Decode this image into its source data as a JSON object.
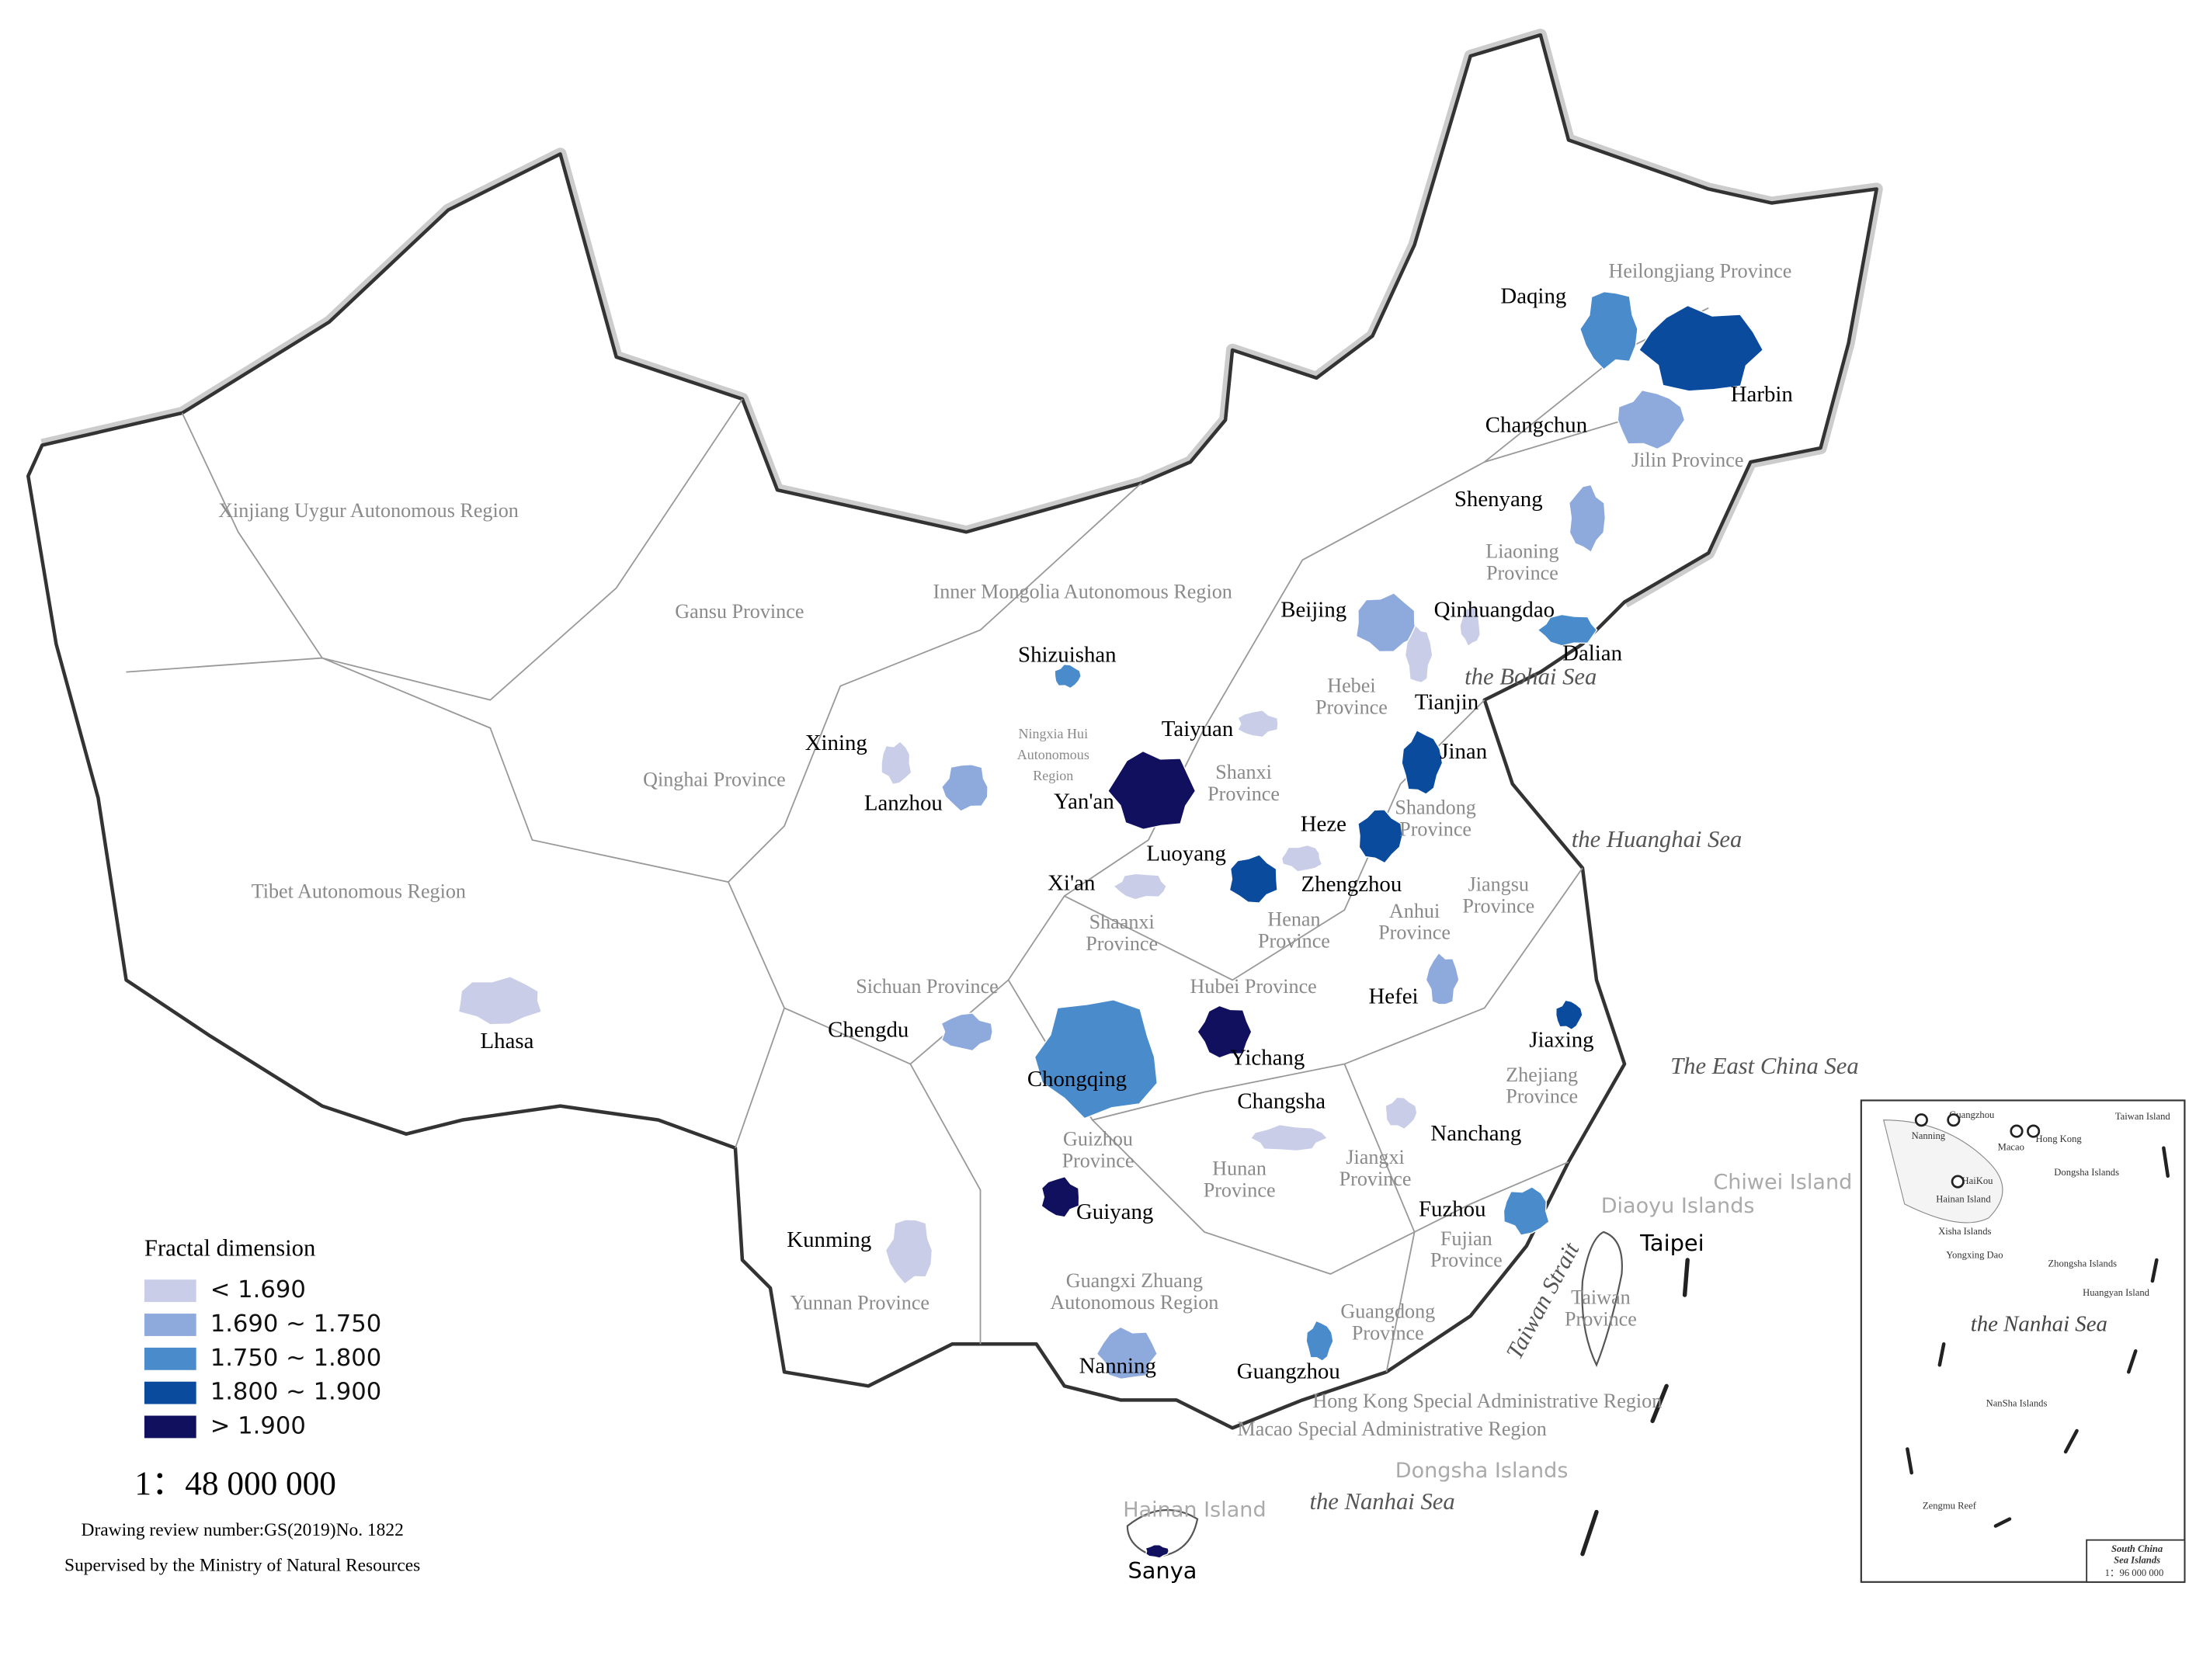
{
  "legend": {
    "title": "Fractal dimension",
    "items": [
      {
        "label": "< 1.690",
        "color": "#c9cde8"
      },
      {
        "label": "1.690 ~ 1.750",
        "color": "#8eaadc"
      },
      {
        "label": "1.750 ~ 1.800",
        "color": "#4a8bcc"
      },
      {
        "label": "1.800 ~ 1.900",
        "color": "#0b4b9e"
      },
      {
        "label": "> 1.900",
        "color": "#10105e"
      }
    ]
  },
  "cities": [
    {
      "name": "Daqing",
      "color": "#4a8bcc"
    },
    {
      "name": "Harbin",
      "color": "#0b4b9e"
    },
    {
      "name": "Changchun",
      "color": "#8eaadc"
    },
    {
      "name": "Shenyang",
      "color": "#8eaadc"
    },
    {
      "name": "Beijing",
      "color": "#8eaadc"
    },
    {
      "name": "Qinhuangdao",
      "color": "#c9cde8"
    },
    {
      "name": "Dalian",
      "color": "#4a8bcc"
    },
    {
      "name": "Tianjin",
      "color": "#c9cde8"
    },
    {
      "name": "Shizuishan",
      "color": "#4a8bcc"
    },
    {
      "name": "Taiyuan",
      "color": "#c9cde8"
    },
    {
      "name": "Xining",
      "color": "#c9cde8"
    },
    {
      "name": "Lanzhou",
      "color": "#8eaadc"
    },
    {
      "name": "Yan'an",
      "color": "#10105e"
    },
    {
      "name": "Jinan",
      "color": "#0b4b9e"
    },
    {
      "name": "Heze",
      "color": "#0b4b9e"
    },
    {
      "name": "Luoyang",
      "color": "#0b4b9e"
    },
    {
      "name": "Zhengzhou",
      "color": "#c9cde8"
    },
    {
      "name": "Xi'an",
      "color": "#c9cde8"
    },
    {
      "name": "Hefei",
      "color": "#8eaadc"
    },
    {
      "name": "Jiaxing",
      "color": "#0b4b9e"
    },
    {
      "name": "Chengdu",
      "color": "#8eaadc"
    },
    {
      "name": "Lhasa",
      "color": "#c9cde8"
    },
    {
      "name": "Chongqing",
      "color": "#4a8bcc"
    },
    {
      "name": "Yichang",
      "color": "#10105e"
    },
    {
      "name": "Changsha",
      "color": "#c9cde8"
    },
    {
      "name": "Nanchang",
      "color": "#c9cde8"
    },
    {
      "name": "Guiyang",
      "color": "#10105e"
    },
    {
      "name": "Fuzhou",
      "color": "#4a8bcc"
    },
    {
      "name": "Kunming",
      "color": "#c9cde8"
    },
    {
      "name": "Nanning",
      "color": "#8eaadc"
    },
    {
      "name": "Guangzhou",
      "color": "#4a8bcc"
    },
    {
      "name": "Sanya",
      "color": "#10105e"
    },
    {
      "name": "Taipei"
    }
  ],
  "provinces": [
    {
      "lines": [
        "Xinjiang Uygur Autonomous Region"
      ]
    },
    {
      "lines": [
        "Inner Mongolia Autonomous Region"
      ]
    },
    {
      "lines": [
        "Gansu Province"
      ]
    },
    {
      "lines": [
        "Heilongjiang Province"
      ]
    },
    {
      "lines": [
        "Jilin Province"
      ]
    },
    {
      "lines": [
        "Liaoning",
        "Province"
      ]
    },
    {
      "lines": [
        "Qinghai Province"
      ]
    },
    {
      "lines": [
        "Tibet Autonomous Region"
      ]
    },
    {
      "lines": [
        "Ningxia Hui",
        "Autonomous",
        "Region"
      ]
    },
    {
      "lines": [
        "Shanxi",
        "Province"
      ]
    },
    {
      "lines": [
        "Hebei",
        "Province"
      ]
    },
    {
      "lines": [
        "Shandong",
        "Province"
      ]
    },
    {
      "lines": [
        "Henan",
        "Province"
      ]
    },
    {
      "lines": [
        "Shaanxi",
        "Province"
      ]
    },
    {
      "lines": [
        "Jiangsu",
        "Province"
      ]
    },
    {
      "lines": [
        "Anhui",
        "Province"
      ]
    },
    {
      "lines": [
        "Sichuan Province"
      ]
    },
    {
      "lines": [
        "Hubei Province"
      ]
    },
    {
      "lines": [
        "Zhejiang",
        "Province"
      ]
    },
    {
      "lines": [
        "Guizhou",
        "Province"
      ]
    },
    {
      "lines": [
        "Hunan",
        "Province"
      ]
    },
    {
      "lines": [
        "Jiangxi",
        "Province"
      ]
    },
    {
      "lines": [
        "Fujian",
        "Province"
      ]
    },
    {
      "lines": [
        "Yunnan Province"
      ]
    },
    {
      "lines": [
        "Guangxi Zhuang",
        "Autonomous Region"
      ]
    },
    {
      "lines": [
        "Guangdong",
        "Province"
      ]
    },
    {
      "lines": [
        "Taiwan",
        "Province"
      ]
    },
    {
      "lines": [
        "Hong Kong Special Administrative Region"
      ]
    },
    {
      "lines": [
        "Macao Special Administrative Region"
      ]
    }
  ],
  "seas": [
    "the Bohai Sea",
    "the Huanghai Sea",
    "The East China Sea",
    "the Nanhai Sea",
    "Taiwan Strait"
  ],
  "islands": [
    "Chiwei Island",
    "Diaoyu Islands",
    "Dongsha Islands",
    "Hainan Island"
  ],
  "scale": "1：48 000 000",
  "notes": [
    "Drawing review number:GS(2019)No. 1822",
    "Supervised by the Ministry of Natural Resources"
  ],
  "inset": {
    "labels": [
      "Guangzhou",
      "Nanning",
      "Macao",
      "Hong Kong",
      "Taiwan Island",
      "HaiKou",
      "Hainan Island",
      "Dongsha Islands",
      "Xisha Islands",
      "Yongxing Dao",
      "Zhongsha Islands",
      "Huangyan Island",
      "the Nanhai Sea",
      "NanSha Islands",
      "Zengmu Reef"
    ],
    "title_lines": [
      "South China",
      "Sea Islands"
    ],
    "scale": "1：96 000 000"
  }
}
